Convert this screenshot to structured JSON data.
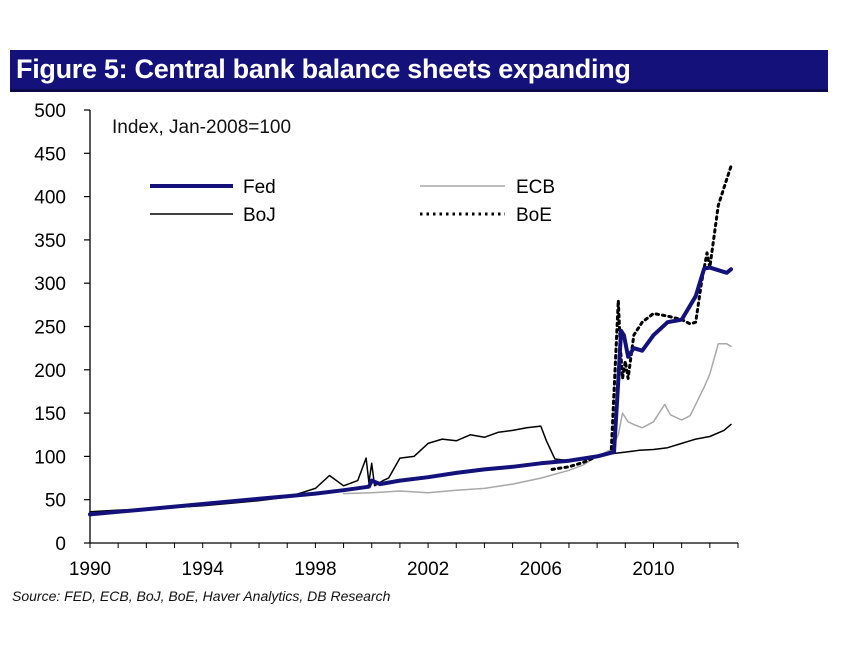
{
  "header": {
    "title": "Figure 5: Central bank balance sheets expanding",
    "bar_color": "#14127a"
  },
  "footer": {
    "source": "Source: FED, ECB, BoJ, BoE, Haver Analytics, DB Research"
  },
  "chart_data": {
    "type": "line",
    "title": "Figure 5: Central bank balance sheets expanding",
    "annotation": "Index, Jan-2008=100",
    "xlabel": "",
    "ylabel": "",
    "xlim": [
      1990,
      2013
    ],
    "ylim": [
      0,
      500
    ],
    "x_ticks": [
      1990,
      1994,
      1998,
      2002,
      2006,
      2010
    ],
    "y_ticks": [
      0,
      50,
      100,
      150,
      200,
      250,
      300,
      350,
      400,
      450,
      500
    ],
    "grid": false,
    "legend_position": "top-left inside",
    "series": [
      {
        "name": "Fed",
        "color": "#14127a",
        "style": "solid-thick",
        "x": [
          1990,
          1991,
          1992,
          1993,
          1994,
          1995,
          1996,
          1997,
          1998,
          1999,
          1999.9,
          2000,
          2000.3,
          2001,
          2002,
          2003,
          2004,
          2005,
          2006,
          2007,
          2008,
          2008.6,
          2008.72,
          2008.85,
          2008.95,
          2009.1,
          2009.3,
          2009.6,
          2010,
          2010.5,
          2011,
          2011.5,
          2011.8,
          2012,
          2012.3,
          2012.6,
          2012.75
        ],
        "y": [
          33,
          36,
          39,
          42,
          45,
          48,
          51,
          54,
          57,
          61,
          65,
          72,
          68,
          72,
          76,
          81,
          85,
          88,
          92,
          95,
          100,
          105,
          170,
          245,
          240,
          215,
          225,
          222,
          240,
          255,
          258,
          285,
          317,
          318,
          315,
          312,
          316
        ]
      },
      {
        "name": "ECB",
        "color": "#a8a8a8",
        "style": "solid-thin",
        "x": [
          1999,
          2000,
          2001,
          2002,
          2003,
          2004,
          2005,
          2006,
          2007,
          2007.5,
          2008,
          2008.5,
          2008.75,
          2008.9,
          2009.1,
          2009.3,
          2009.6,
          2010,
          2010.4,
          2010.6,
          2011,
          2011.3,
          2011.5,
          2011.8,
          2012,
          2012.3,
          2012.6,
          2012.75
        ],
        "y": [
          57,
          58,
          60,
          58,
          61,
          63,
          68,
          75,
          84,
          90,
          100,
          108,
          125,
          150,
          140,
          137,
          133,
          140,
          160,
          148,
          142,
          147,
          160,
          180,
          195,
          230,
          230,
          227
        ]
      },
      {
        "name": "BoJ",
        "color": "#000000",
        "style": "solid-thin",
        "x": [
          1990,
          1991,
          1992,
          1993,
          1994,
          1995,
          1996,
          1997,
          1997.5,
          1998,
          1998.5,
          1999,
          1999.5,
          1999.8,
          1999.9,
          2000,
          2000.1,
          2000.4,
          2000.6,
          2001,
          2001.5,
          2002,
          2002.5,
          2003,
          2003.5,
          2004,
          2004.5,
          2005,
          2005.5,
          2006,
          2006.2,
          2006.5,
          2007,
          2007.5,
          2008,
          2008.5,
          2009,
          2009.5,
          2010,
          2010.5,
          2011,
          2011.3,
          2011.5,
          2012,
          2012.5,
          2012.75
        ],
        "y": [
          36,
          38,
          39,
          41,
          43,
          46,
          49,
          53,
          58,
          63,
          78,
          66,
          72,
          98,
          70,
          92,
          66,
          72,
          75,
          98,
          100,
          115,
          120,
          118,
          125,
          122,
          128,
          130,
          133,
          135,
          118,
          97,
          95,
          97,
          100,
          103,
          105,
          107,
          108,
          110,
          115,
          118,
          120,
          123,
          130,
          137
        ]
      },
      {
        "name": "BoE",
        "color": "#000000",
        "style": "dotted",
        "x": [
          2006.4,
          2007,
          2007.5,
          2008,
          2008.5,
          2008.75,
          2008.82,
          2008.9,
          2009.0,
          2009.1,
          2009.3,
          2009.6,
          2010,
          2010.5,
          2011,
          2011.3,
          2011.5,
          2011.7,
          2011.9,
          2012,
          2012.3,
          2012.6,
          2012.75
        ],
        "y": [
          85,
          88,
          93,
          100,
          105,
          280,
          230,
          190,
          210,
          190,
          240,
          255,
          265,
          262,
          258,
          253,
          255,
          300,
          335,
          318,
          390,
          420,
          435
        ]
      }
    ]
  }
}
